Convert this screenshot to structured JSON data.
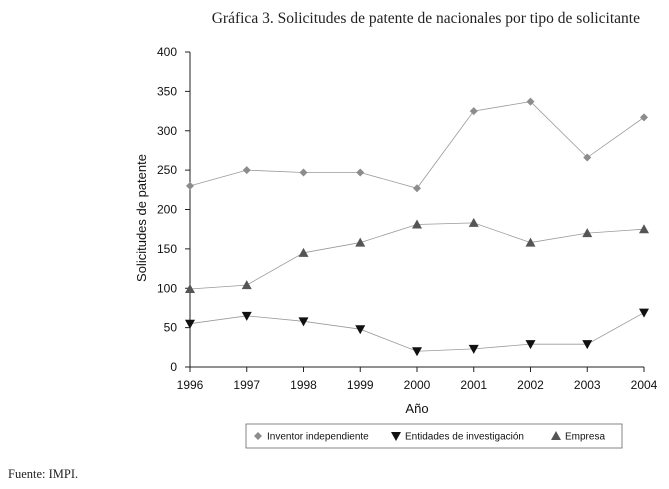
{
  "source_note": "Fuente:  IMPI.",
  "colors": {
    "Inventor independiente": "#8c8c8c",
    "Entidades de investigación": "#111111",
    "Empresa": "#555555"
  },
  "chart_data": {
    "type": "line",
    "title": "Gráfica 3. Solicitudes de patente de nacionales por tipo de solicitante",
    "xlabel": "Año",
    "ylabel": "Solicitudes de patente",
    "categories": [
      "1996",
      "1997",
      "1998",
      "1999",
      "2000",
      "2001",
      "2002",
      "2003",
      "2004"
    ],
    "ylim": [
      0,
      400
    ],
    "yticks": [
      "0",
      "50",
      "100",
      "150",
      "200",
      "250",
      "300",
      "350",
      "400"
    ],
    "grid": false,
    "legend_position": "bottom",
    "series": [
      {
        "name": "Inventor independiente",
        "marker": "diamond",
        "values": [
          230,
          250,
          247,
          247,
          227,
          325,
          337,
          266,
          317
        ]
      },
      {
        "name": "Entidades de investigación",
        "marker": "triangle-down",
        "values": [
          55,
          65,
          58,
          48,
          20,
          23,
          29,
          29,
          69
        ]
      },
      {
        "name": "Empresa",
        "marker": "triangle-up",
        "values": [
          99,
          104,
          145,
          158,
          181,
          183,
          158,
          170,
          175
        ]
      }
    ]
  }
}
